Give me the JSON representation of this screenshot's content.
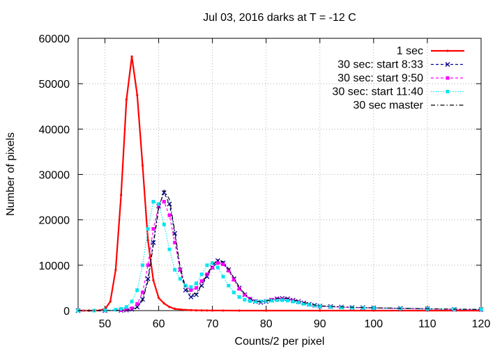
{
  "chart_data": {
    "type": "line",
    "title": "Jul 03, 2016 darks at T = -12 C",
    "xlabel": "Counts/2 per pixel",
    "ylabel": "Number of pixels",
    "xlim": [
      45,
      120
    ],
    "ylim": [
      0,
      60000
    ],
    "xticks": [
      50,
      60,
      70,
      80,
      90,
      100,
      110,
      120
    ],
    "yticks": [
      0,
      10000,
      20000,
      30000,
      40000,
      50000,
      60000
    ],
    "grid": true,
    "legend_position": "top-right",
    "series": [
      {
        "name": "1 sec",
        "color": "#ff0000",
        "style": "solid",
        "marker": "dot",
        "x": [
          45,
          46,
          47,
          48,
          49,
          50,
          51,
          52,
          53,
          54,
          55,
          56,
          57,
          58,
          59,
          60,
          61,
          62,
          63,
          64,
          65,
          66,
          67,
          68,
          69,
          70,
          72,
          75,
          80,
          90,
          100,
          110,
          120
        ],
        "y": [
          0,
          0,
          0,
          0,
          50,
          300,
          2000,
          9000,
          25500,
          46500,
          56000,
          47500,
          32000,
          15500,
          6700,
          2800,
          1600,
          800,
          400,
          250,
          150,
          100,
          60,
          40,
          30,
          20,
          10,
          5,
          0,
          0,
          0,
          0,
          0
        ]
      },
      {
        "name": "30 sec: start 8:33",
        "color": "#00008b",
        "style": "dashed",
        "marker": "x",
        "x": [
          45,
          50,
          53,
          54,
          55,
          56,
          57,
          58,
          59,
          60,
          61,
          62,
          63,
          64,
          65,
          66,
          67,
          68,
          69,
          70,
          71,
          72,
          73,
          74,
          75,
          76,
          77,
          78,
          79,
          80,
          81,
          82,
          83,
          84,
          85,
          86,
          87,
          88,
          89,
          90,
          92,
          94,
          96,
          98,
          100,
          105,
          110,
          115,
          120
        ],
        "y": [
          0,
          0,
          50,
          100,
          300,
          800,
          2500,
          7000,
          15000,
          23000,
          26000,
          23500,
          17000,
          9000,
          4500,
          3000,
          3500,
          5500,
          7500,
          9500,
          11000,
          10500,
          9000,
          7000,
          5000,
          3500,
          2500,
          2000,
          1800,
          2000,
          2300,
          2600,
          2700,
          2600,
          2300,
          2000,
          1700,
          1400,
          1200,
          1000,
          900,
          800,
          700,
          650,
          600,
          500,
          400,
          300,
          250
        ]
      },
      {
        "name": "30 sec: start 9:50",
        "color": "#ff00ff",
        "style": "dashed",
        "marker": "square",
        "x": [
          45,
          50,
          53,
          54,
          55,
          56,
          57,
          58,
          59,
          60,
          61,
          62,
          63,
          64,
          65,
          66,
          67,
          68,
          69,
          70,
          71,
          72,
          73,
          74,
          75,
          76,
          77,
          78,
          79,
          80,
          81,
          82,
          83,
          84,
          85,
          86,
          87,
          88,
          89,
          90,
          92,
          94,
          96,
          98,
          100,
          105,
          110,
          115,
          120
        ],
        "y": [
          0,
          0,
          100,
          200,
          500,
          1500,
          4000,
          10000,
          18000,
          23000,
          24000,
          21000,
          15000,
          9000,
          5500,
          4500,
          5000,
          6500,
          8000,
          9500,
          10500,
          10200,
          8800,
          6800,
          4800,
          3500,
          2600,
          2100,
          1900,
          2100,
          2400,
          2600,
          2600,
          2500,
          2200,
          1900,
          1600,
          1300,
          1100,
          950,
          850,
          750,
          650,
          600,
          550,
          450,
          350,
          250,
          200
        ]
      },
      {
        "name": "30 sec: start 11:40",
        "color": "#00e5ee",
        "style": "dotted",
        "marker": "square",
        "x": [
          45,
          48,
          50,
          52,
          53,
          54,
          55,
          56,
          57,
          58,
          59,
          60,
          61,
          62,
          63,
          64,
          65,
          66,
          67,
          68,
          69,
          70,
          71,
          72,
          73,
          74,
          75,
          76,
          77,
          78,
          79,
          80,
          81,
          82,
          83,
          84,
          85,
          86,
          87,
          88,
          89,
          90,
          92,
          94,
          96,
          98,
          100,
          105,
          110,
          115,
          120
        ],
        "y": [
          0,
          0,
          50,
          200,
          400,
          800,
          2000,
          4500,
          10000,
          18000,
          24000,
          23500,
          19000,
          13500,
          9000,
          7000,
          5500,
          5200,
          6000,
          8000,
          10000,
          10500,
          9500,
          7500,
          5500,
          4000,
          3000,
          2400,
          2100,
          2000,
          2000,
          2100,
          2200,
          2300,
          2300,
          2200,
          2000,
          1800,
          1500,
          1300,
          1100,
          950,
          800,
          700,
          650,
          600,
          550,
          450,
          350,
          300,
          250
        ]
      },
      {
        "name": "30 sec master",
        "color": "#000000",
        "style": "dashdot",
        "marker": "none",
        "x": [
          45,
          50,
          53,
          54,
          55,
          56,
          57,
          58,
          59,
          60,
          61,
          62,
          63,
          64,
          65,
          66,
          67,
          68,
          69,
          70,
          71,
          72,
          73,
          74,
          75,
          76,
          77,
          78,
          79,
          80,
          81,
          82,
          83,
          84,
          85,
          86,
          87,
          88,
          89,
          90,
          92,
          94,
          96,
          98,
          100,
          105,
          110,
          115,
          120
        ],
        "y": [
          0,
          0,
          30,
          80,
          250,
          700,
          2200,
          6500,
          14500,
          22500,
          26500,
          24500,
          17500,
          9500,
          5000,
          3500,
          3800,
          5800,
          8000,
          10000,
          11200,
          10800,
          9200,
          7200,
          5200,
          3700,
          2700,
          2100,
          1900,
          2100,
          2400,
          2700,
          2800,
          2700,
          2400,
          2100,
          1800,
          1500,
          1250,
          1050,
          950,
          850,
          750,
          680,
          620,
          520,
          420,
          320,
          260
        ]
      }
    ]
  }
}
